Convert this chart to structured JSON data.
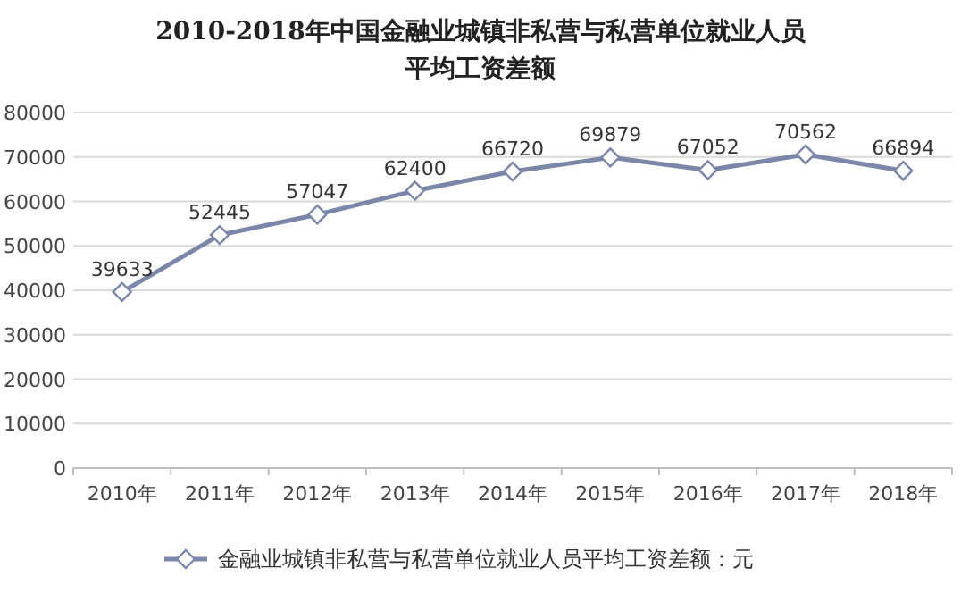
{
  "chart_data": {
    "type": "line",
    "title": "2010-2018年中国金融业城镇非私营与私营单位就业人员平均工资差额",
    "categories": [
      "2010年",
      "2011年",
      "2012年",
      "2013年",
      "2014年",
      "2015年",
      "2016年",
      "2017年",
      "2018年"
    ],
    "series": [
      {
        "name": "金融业城镇非私营与私营单位就业人员平均工资差额：元",
        "color": "#7b86a8",
        "values": [
          39633,
          52445,
          57047,
          62400,
          66720,
          69879,
          67052,
          70562,
          66894
        ]
      }
    ],
    "ylim": [
      0,
      80000
    ],
    "yticks": [
      0,
      10000,
      20000,
      30000,
      40000,
      50000,
      60000,
      70000,
      80000
    ],
    "grid": "y",
    "legend": "bottom",
    "marker": "diamond",
    "data_labels": true
  }
}
